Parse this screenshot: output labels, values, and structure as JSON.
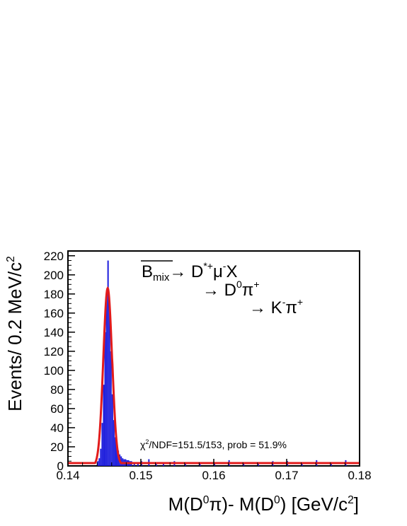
{
  "chart_data": {
    "type": "line",
    "ylabel": "Events/ 0.2 MeV/c",
    "ylabel_sup": "2",
    "xlabel_parts": [
      "M(D",
      "0",
      "π)- M(D",
      "0",
      ") [GeV/c",
      "2",
      "]"
    ],
    "xlim": [
      0.14,
      0.18
    ],
    "ylim": [
      0,
      225
    ],
    "x_ticks": [
      "0.14",
      "0.15",
      "0.16",
      "0.17",
      "0.18"
    ],
    "x_tick_values": [
      0.14,
      0.15,
      0.16,
      0.17,
      0.18
    ],
    "y_ticks": [
      "0",
      "20",
      "40",
      "60",
      "80",
      "100",
      "120",
      "140",
      "160",
      "180",
      "200",
      "220"
    ],
    "y_tick_values": [
      0,
      20,
      40,
      60,
      80,
      100,
      120,
      140,
      160,
      180,
      200,
      220
    ],
    "decay_chain": {
      "line1": {
        "parent": "B",
        "parent_sub": "mix",
        "arrow": "→ D",
        "sup1": "*+",
        "mu": "μ",
        "sup2": "-",
        "rest": "X"
      },
      "line2": {
        "arrow": "→ D",
        "sup": "0",
        "pi": "π",
        "pi_sup": "+"
      },
      "line3": {
        "arrow": "→ K",
        "sup": "-",
        "pi": "π",
        "pi_sup": "+"
      }
    },
    "fit_text": {
      "chi": "χ",
      "chi_sup": "2",
      "rest": "/NDF=151.5/153, prob = 51.9%"
    },
    "series": [
      {
        "kind": "histogram",
        "color": "#2222dd",
        "bin_width": 0.0002,
        "x": [
          0.144,
          0.1442,
          0.1444,
          0.1446,
          0.1448,
          0.145,
          0.1452,
          0.1454,
          0.1456,
          0.1458,
          0.146,
          0.1462,
          0.1464,
          0.1466,
          0.1468,
          0.147,
          0.1472,
          0.1474,
          0.1476,
          0.1478,
          0.148,
          0.1482,
          0.1484,
          0.1486,
          0.149,
          0.1495,
          0.15,
          0.151,
          0.152,
          0.153,
          0.1545,
          0.156,
          0.158,
          0.16,
          0.162,
          0.164,
          0.166,
          0.168,
          0.17,
          0.172,
          0.174,
          0.176,
          0.178
        ],
        "values": [
          5,
          8,
          18,
          45,
          85,
          140,
          180,
          215,
          170,
          120,
          75,
          48,
          30,
          20,
          16,
          12,
          10,
          8,
          7,
          7,
          6,
          6,
          5,
          5,
          4,
          3,
          5,
          7,
          4,
          3,
          5,
          4,
          3,
          3,
          6,
          4,
          3,
          5,
          5,
          3,
          6,
          4,
          6
        ]
      },
      {
        "kind": "fit",
        "color": "#e21b1b",
        "peak_x": 0.14545,
        "peak_height": 186,
        "width": 0.0006,
        "baseline": 3
      }
    ]
  }
}
